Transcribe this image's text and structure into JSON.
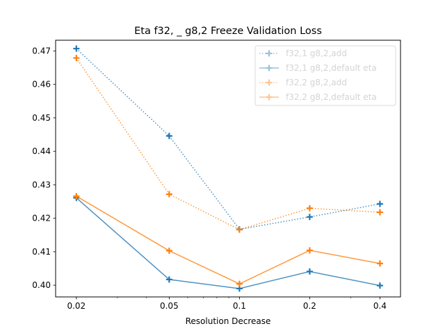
{
  "chart_data": {
    "type": "line",
    "title": "Eta f32, _ g8,2 Freeze Validation Loss",
    "xlabel": "Resolution Decrease",
    "ylabel": "",
    "xscale": "log",
    "x": [
      0.02,
      0.05,
      0.1,
      0.2,
      0.4
    ],
    "xtick_labels": [
      "0.02",
      "0.05",
      "0.1",
      "0.2",
      "0.4"
    ],
    "xlim": [
      0.0163,
      0.49
    ],
    "ylim": [
      0.3965,
      0.4732
    ],
    "yticks": [
      0.4,
      0.41,
      0.42,
      0.43,
      0.44,
      0.45,
      0.46,
      0.47
    ],
    "ytick_labels": [
      "0.40",
      "0.41",
      "0.42",
      "0.43",
      "0.44",
      "0.45",
      "0.46",
      "0.47"
    ],
    "grid": false,
    "legend_position": "top-right",
    "series": [
      {
        "name": "f32,1 g8,2,add",
        "color": "#1f77b4",
        "linestyle": "dotted",
        "marker": "plus",
        "values": [
          0.4707,
          0.4446,
          0.4167,
          0.4204,
          0.4243
        ]
      },
      {
        "name": "f32,1 g8,2,default eta",
        "color": "#1f77b4",
        "linestyle": "solid",
        "marker": "plus",
        "values": [
          0.4261,
          0.4017,
          0.399,
          0.4041,
          0.3999
        ]
      },
      {
        "name": "f32,2 g8,2,add",
        "color": "#ff7f0e",
        "linestyle": "dotted",
        "marker": "plus",
        "values": [
          0.4679,
          0.4272,
          0.4166,
          0.423,
          0.4218
        ]
      },
      {
        "name": "f32,2 g8,2,default eta",
        "color": "#ff7f0e",
        "linestyle": "solid",
        "marker": "plus",
        "values": [
          0.4266,
          0.4103,
          0.4004,
          0.4104,
          0.4065
        ]
      }
    ]
  }
}
